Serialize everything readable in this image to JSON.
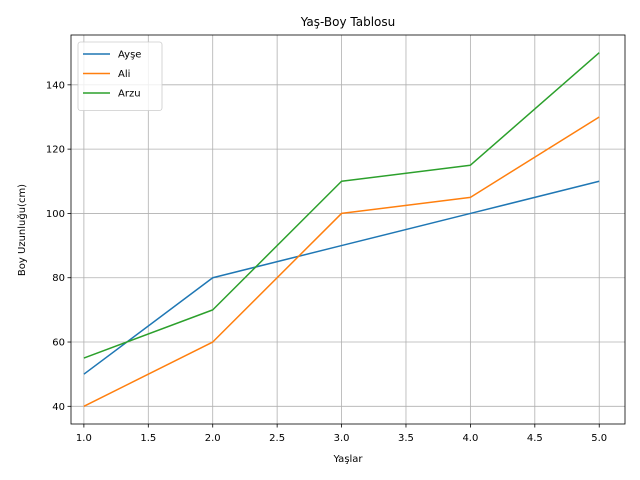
{
  "chart_data": {
    "type": "line",
    "title": "Yaş-Boy Tablosu",
    "xlabel": "Yaşlar",
    "ylabel": "Boy Uzunluğu(cm)",
    "x": [
      1.0,
      2.0,
      3.0,
      4.0,
      5.0
    ],
    "series": [
      {
        "name": "Ayşe",
        "values": [
          50,
          80,
          90,
          100,
          110
        ],
        "color": "#1f77b4"
      },
      {
        "name": "Ali",
        "values": [
          40,
          60,
          100,
          105,
          130
        ],
        "color": "#ff7f0e"
      },
      {
        "name": "Arzu",
        "values": [
          55,
          70,
          110,
          115,
          150
        ],
        "color": "#2ca02c"
      }
    ],
    "xlim": [
      0.9,
      5.2
    ],
    "ylim": [
      34.5,
      155.5
    ],
    "xticks": [
      "1.0",
      "1.5",
      "2.0",
      "2.5",
      "3.0",
      "3.5",
      "4.0",
      "4.5",
      "5.0"
    ],
    "yticks": [
      "40",
      "60",
      "80",
      "100",
      "120",
      "140"
    ],
    "grid": true,
    "legend_position": "top-left"
  }
}
